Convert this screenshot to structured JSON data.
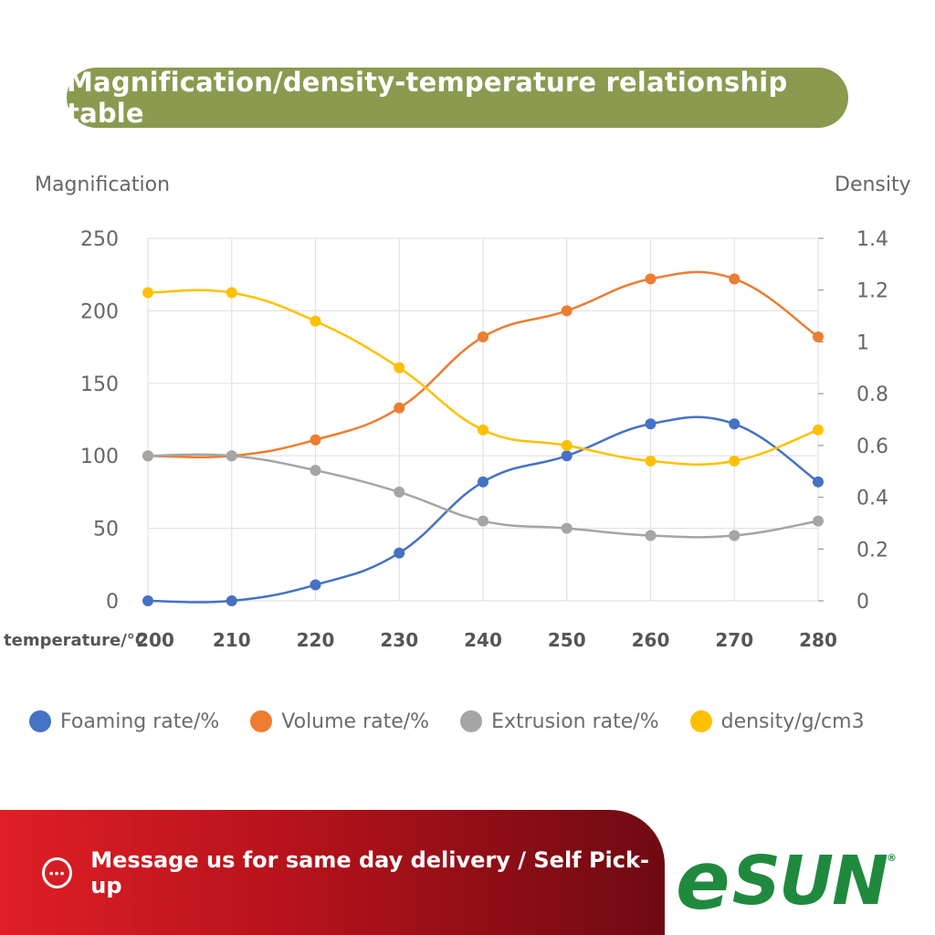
{
  "header": {
    "title": "Magnification/density-temperature relationship table"
  },
  "chart_data": {
    "type": "line",
    "title": "Magnification/density-temperature relationship table",
    "ylabel_left": "Magnification",
    "ylabel_right": "Density",
    "xlabel": "temperature/°C",
    "x": [
      200,
      210,
      220,
      230,
      240,
      250,
      260,
      270,
      280
    ],
    "ylim_left": [
      0,
      250
    ],
    "yticks_left": [
      0,
      50,
      100,
      150,
      200,
      250
    ],
    "ylim_right": [
      0,
      1.4
    ],
    "yticks_right": [
      "0",
      "0.2",
      "0.4",
      "0.6",
      "0.8",
      "1",
      "1.2",
      "1.4"
    ],
    "grid": true,
    "legend_position": "bottom",
    "series": [
      {
        "name": "Foaming rate/%",
        "axis": "left",
        "color": "#4472c4",
        "values": [
          0,
          0,
          11,
          33,
          82,
          100,
          122,
          122,
          82
        ]
      },
      {
        "name": "Volume rate/%",
        "axis": "left",
        "color": "#ed7d31",
        "values": [
          100,
          100,
          111,
          133,
          182,
          200,
          222,
          222,
          182
        ]
      },
      {
        "name": "Extrusion rate/%",
        "axis": "left",
        "color": "#a5a5a5",
        "values": [
          100,
          100,
          90,
          75,
          55,
          50,
          45,
          45,
          55
        ]
      },
      {
        "name": "density/g/cm3",
        "axis": "right",
        "color": "#ffc000",
        "values": [
          1.19,
          1.19,
          1.08,
          0.9,
          0.66,
          0.6,
          0.54,
          0.54,
          0.66
        ]
      }
    ]
  },
  "banner": {
    "text": "Message us for same day delivery / Self Pick-up",
    "icon": "chat-bubble-icon"
  },
  "logo": {
    "e": "e",
    "sun": "SUN",
    "reg": "®"
  }
}
